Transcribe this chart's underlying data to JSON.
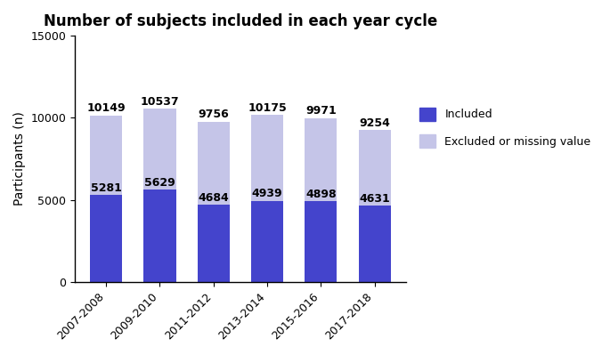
{
  "title": "Number of subjects included in each year cycle",
  "ylabel": "Participants (n)",
  "categories": [
    "2007-2008",
    "2009-2010",
    "2011-2012",
    "2013-2014",
    "2015-2016",
    "2017-2018"
  ],
  "included": [
    5281,
    5629,
    4684,
    4939,
    4898,
    4631
  ],
  "total": [
    10149,
    10537,
    9756,
    10175,
    9971,
    9254
  ],
  "color_included": "#4444CC",
  "color_excluded": "#C5C5E8",
  "ylim": [
    0,
    15000
  ],
  "yticks": [
    0,
    5000,
    10000,
    15000
  ],
  "legend_labels": [
    "Included",
    "Excluded or missing value"
  ],
  "bar_width": 0.6,
  "figsize": [
    6.85,
    3.99
  ],
  "dpi": 100,
  "title_fontsize": 12,
  "label_fontsize": 9,
  "tick_fontsize": 9,
  "ylabel_fontsize": 10
}
